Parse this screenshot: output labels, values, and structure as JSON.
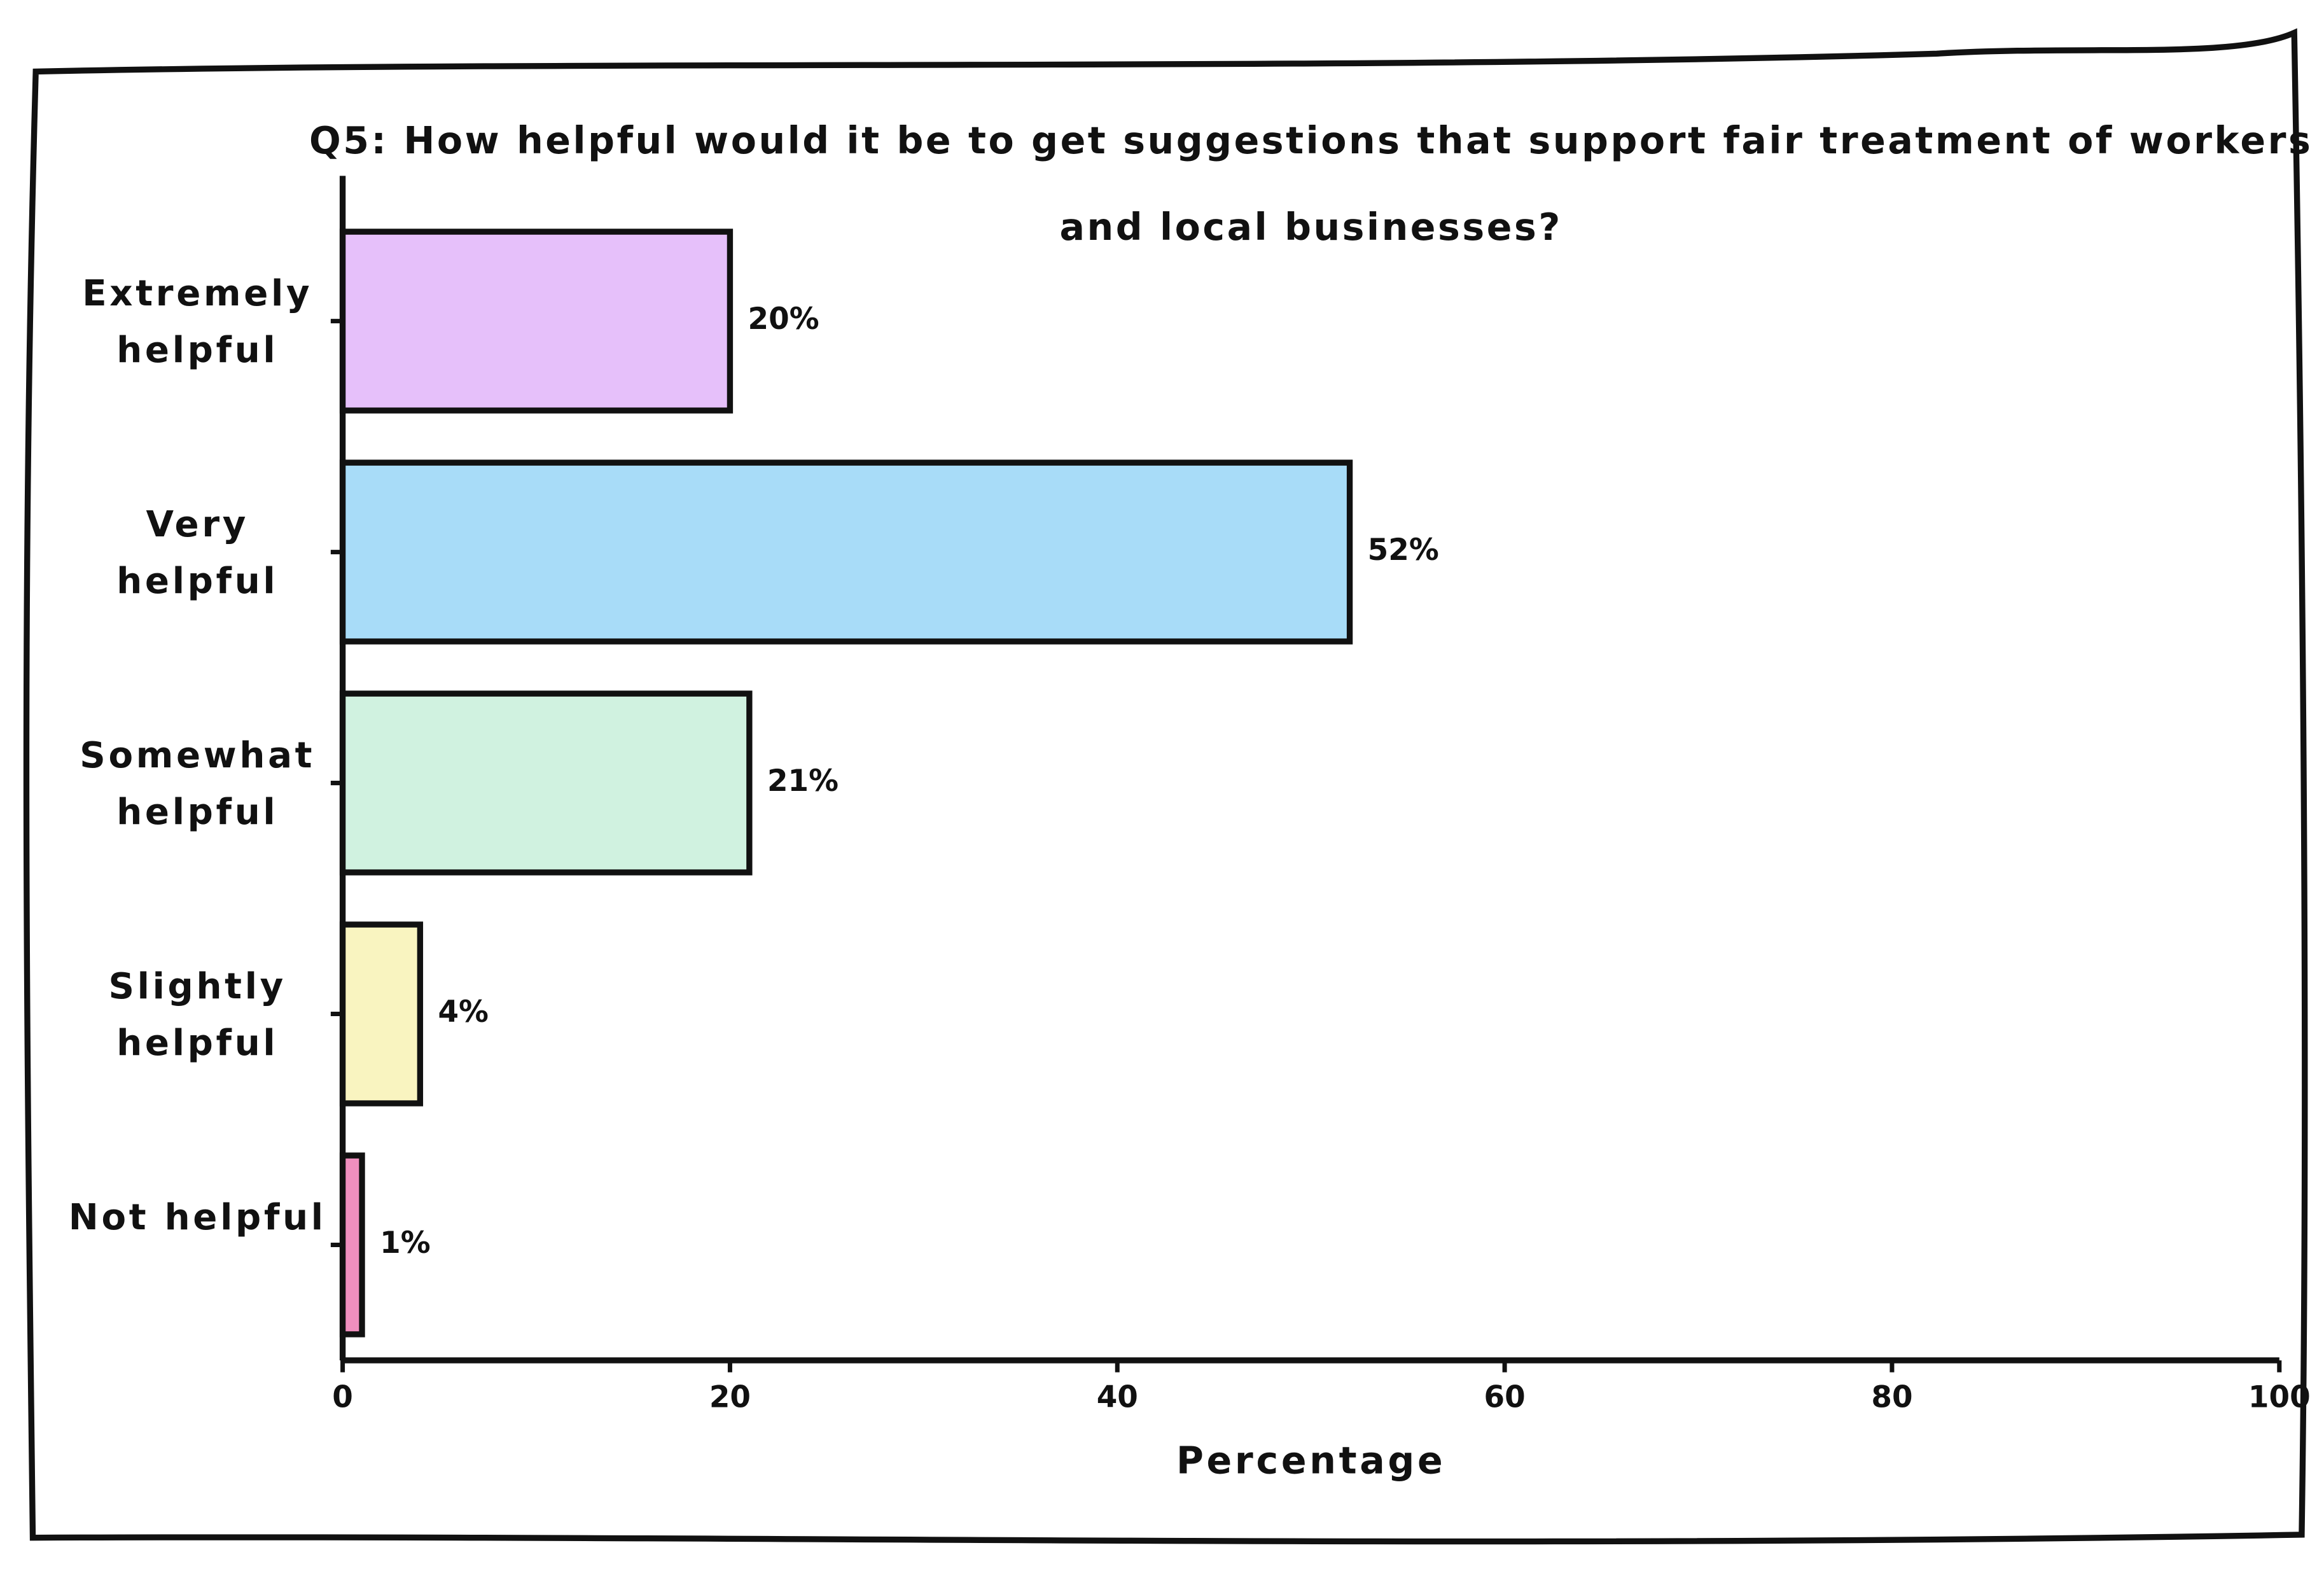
{
  "chart_data": {
    "type": "barh",
    "title": "Q5: How helpful would it be to get suggestions that support fair treatment of workers and local businesses?",
    "categories": [
      "Extremely helpful",
      "Very helpful",
      "Somewhat helpful",
      "Slightly helpful",
      "Not helpful"
    ],
    "values": [
      20,
      52,
      21,
      4,
      1
    ],
    "value_labels": [
      "20%",
      "52%",
      "21%",
      "4%",
      "1%"
    ],
    "colors": [
      "#e6c0fa",
      "#a8dcf8",
      "#d0f2e0",
      "#f9f4c0",
      "#f08fbf"
    ],
    "xlabel": "Percentage",
    "xlim": [
      0,
      100
    ],
    "xticks": [
      0,
      20,
      40,
      60,
      80,
      100
    ]
  }
}
